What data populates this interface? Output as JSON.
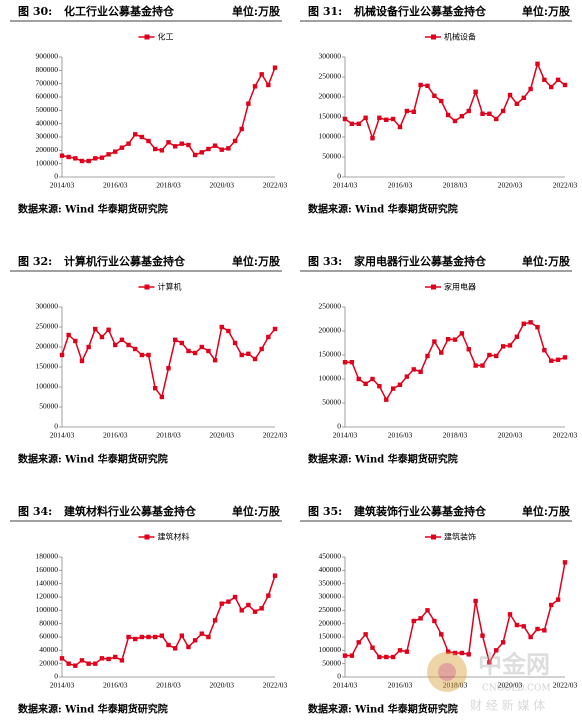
{
  "chart_data": [
    {
      "figure": "图 30:",
      "title": "化工行业公募基金持仓",
      "unit": "单位:万股",
      "source": "数据来源: Wind 华泰期货研究院",
      "type": "line",
      "categories": [
        "2014/03",
        null,
        null,
        null,
        null,
        null,
        null,
        null,
        "2016/03",
        null,
        null,
        null,
        null,
        null,
        null,
        null,
        "2018/03",
        null,
        null,
        null,
        null,
        null,
        null,
        null,
        "2020/03",
        null,
        null,
        null,
        null,
        null,
        null,
        null,
        "2022/03"
      ],
      "series": [
        {
          "name": "化工",
          "color": "#e0001b",
          "values": [
            160000,
            150000,
            140000,
            120000,
            120000,
            140000,
            145000,
            170000,
            190000,
            220000,
            250000,
            320000,
            300000,
            270000,
            210000,
            200000,
            260000,
            230000,
            250000,
            240000,
            165000,
            185000,
            210000,
            235000,
            205000,
            215000,
            270000,
            360000,
            550000,
            680000,
            770000,
            690000,
            820000
          ]
        }
      ],
      "ylim": [
        0,
        900000
      ],
      "yticks": [
        0,
        100000,
        200000,
        300000,
        400000,
        500000,
        600000,
        700000,
        800000,
        900000
      ]
    },
    {
      "figure": "图 31:",
      "title": "机械设备行业公募基金持仓",
      "unit": "单位:万股",
      "source": "数据来源: Wind 华泰期货研究院",
      "type": "line",
      "categories": [
        "2014/03",
        null,
        null,
        null,
        null,
        null,
        null,
        null,
        "2016/03",
        null,
        null,
        null,
        null,
        null,
        null,
        null,
        "2018/03",
        null,
        null,
        null,
        null,
        null,
        null,
        null,
        "2020/03",
        null,
        null,
        null,
        null,
        null,
        null,
        null,
        "2022/03"
      ],
      "series": [
        {
          "name": "机械设备",
          "color": "#e0001b",
          "values": [
            145000,
            133000,
            133000,
            148000,
            97000,
            148000,
            143000,
            145000,
            125000,
            165000,
            163000,
            230000,
            228000,
            203000,
            190000,
            155000,
            140000,
            152000,
            165000,
            213000,
            158000,
            158000,
            145000,
            165000,
            205000,
            183000,
            198000,
            220000,
            283000,
            243000,
            225000,
            243000,
            230000
          ]
        }
      ],
      "ylim": [
        0,
        300000
      ],
      "yticks": [
        0,
        50000,
        100000,
        150000,
        200000,
        250000,
        300000
      ]
    },
    {
      "figure": "图 32:",
      "title": "计算机行业公募基金持仓",
      "unit": "单位:万股",
      "source": "数据来源: Wind 华泰期货研究院",
      "type": "line",
      "categories": [
        "2014/03",
        null,
        null,
        null,
        null,
        null,
        null,
        null,
        "2016/03",
        null,
        null,
        null,
        null,
        null,
        null,
        null,
        "2018/03",
        null,
        null,
        null,
        null,
        null,
        null,
        null,
        "2020/03",
        null,
        null,
        null,
        null,
        null,
        null,
        null,
        "2022/03"
      ],
      "series": [
        {
          "name": "计算机",
          "color": "#e0001b",
          "values": [
            180000,
            230000,
            215000,
            165000,
            200000,
            245000,
            225000,
            243000,
            205000,
            218000,
            205000,
            195000,
            180000,
            180000,
            97000,
            75000,
            147000,
            218000,
            210000,
            190000,
            185000,
            200000,
            190000,
            167000,
            250000,
            240000,
            210000,
            180000,
            183000,
            170000,
            195000,
            225000,
            245000
          ]
        }
      ],
      "ylim": [
        0,
        300000
      ],
      "yticks": [
        0,
        50000,
        100000,
        150000,
        200000,
        250000,
        300000
      ]
    },
    {
      "figure": "图 33:",
      "title": "家用电器行业公募基金持仓",
      "unit": "单位:万股",
      "source": "数据来源: Wind 华泰期货研究院",
      "type": "line",
      "categories": [
        "2014/03",
        null,
        null,
        null,
        null,
        null,
        null,
        null,
        "2016/03",
        null,
        null,
        null,
        null,
        null,
        null,
        null,
        "2018/03",
        null,
        null,
        null,
        null,
        null,
        null,
        null,
        "2020/03",
        null,
        null,
        null,
        null,
        null,
        null,
        null,
        "2022/03"
      ],
      "series": [
        {
          "name": "家用电器",
          "color": "#e0001b",
          "values": [
            135000,
            135000,
            100000,
            90000,
            100000,
            85000,
            57000,
            80000,
            88000,
            105000,
            120000,
            115000,
            148000,
            178000,
            155000,
            183000,
            182000,
            195000,
            162000,
            128000,
            128000,
            150000,
            148000,
            168000,
            170000,
            188000,
            215000,
            218000,
            208000,
            160000,
            138000,
            140000,
            145000
          ]
        }
      ],
      "ylim": [
        0,
        250000
      ],
      "yticks": [
        0,
        50000,
        100000,
        150000,
        200000,
        250000
      ]
    },
    {
      "figure": "图 34:",
      "title": "建筑材料行业公募基金持仓",
      "unit": "单位:万股",
      "source": "数据来源: Wind 华泰期货研究院",
      "type": "line",
      "categories": [
        "2014/03",
        null,
        null,
        null,
        null,
        null,
        null,
        null,
        "2016/03",
        null,
        null,
        null,
        null,
        null,
        null,
        null,
        "2018/03",
        null,
        null,
        null,
        null,
        null,
        null,
        null,
        "2020/03",
        null,
        null,
        null,
        null,
        null,
        null,
        null,
        "2022/03"
      ],
      "series": [
        {
          "name": "建筑材料",
          "color": "#e0001b",
          "values": [
            28000,
            20000,
            17000,
            25000,
            20000,
            20000,
            28000,
            27000,
            30000,
            25000,
            60000,
            57000,
            60000,
            60000,
            60000,
            62000,
            48000,
            43000,
            62000,
            45000,
            55000,
            65000,
            60000,
            85000,
            110000,
            113000,
            120000,
            100000,
            108000,
            98000,
            103000,
            122000,
            152000
          ]
        }
      ],
      "ylim": [
        0,
        180000
      ],
      "yticks": [
        0,
        20000,
        40000,
        60000,
        80000,
        100000,
        120000,
        140000,
        160000,
        180000
      ]
    },
    {
      "figure": "图 35:",
      "title": "建筑装饰行业公募基金持仓",
      "unit": "单位:万股",
      "source": "数据来源: Wind 华泰期货研究院",
      "type": "line",
      "categories": [
        "2014/03",
        null,
        null,
        null,
        null,
        null,
        null,
        null,
        "2016/03",
        null,
        null,
        null,
        null,
        null,
        null,
        null,
        "2018/03",
        null,
        null,
        null,
        null,
        null,
        null,
        null,
        "2020/03",
        null,
        null,
        null,
        null,
        null,
        null,
        null,
        "2022/03"
      ],
      "series": [
        {
          "name": "建筑装饰",
          "color": "#e0001b",
          "values": [
            80000,
            80000,
            130000,
            160000,
            110000,
            75000,
            75000,
            75000,
            100000,
            95000,
            210000,
            220000,
            250000,
            210000,
            160000,
            95000,
            90000,
            90000,
            85000,
            285000,
            155000,
            55000,
            100000,
            130000,
            235000,
            195000,
            190000,
            150000,
            180000,
            175000,
            270000,
            290000,
            430000
          ]
        }
      ],
      "ylim": [
        0,
        450000
      ],
      "yticks": [
        0,
        50000,
        100000,
        150000,
        200000,
        250000,
        300000,
        350000,
        400000,
        450000
      ]
    }
  ],
  "watermark": {
    "name": "中金网",
    "domain": "CNGOLD.COM",
    "tagline": "财 经 新 媒 体"
  }
}
